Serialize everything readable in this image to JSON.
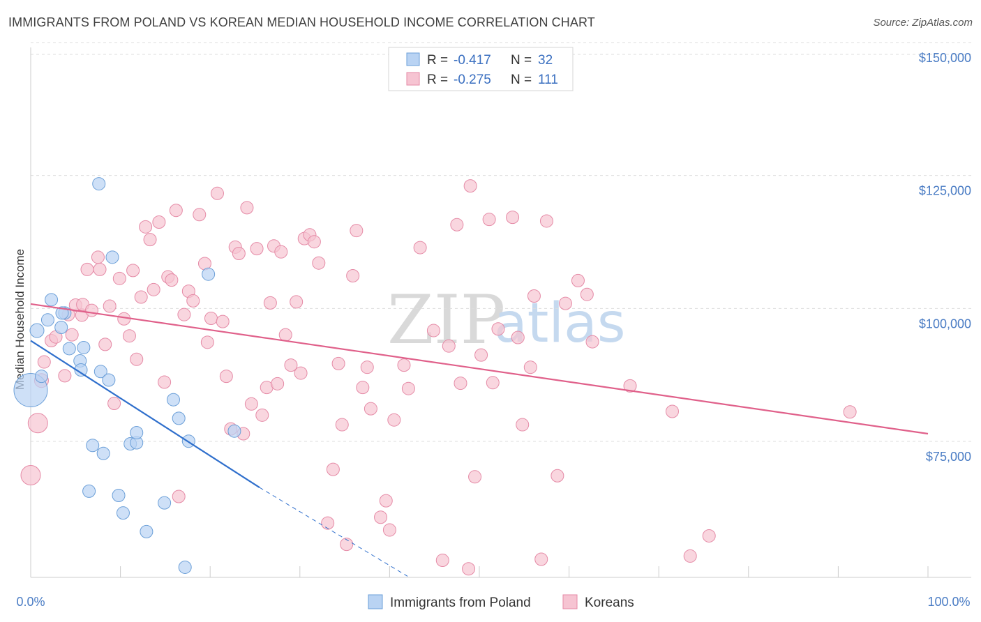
{
  "title": "IMMIGRANTS FROM POLAND VS KOREAN MEDIAN HOUSEHOLD INCOME CORRELATION CHART",
  "source": "Source: ZipAtlas.com",
  "watermark": {
    "zip": "ZIP",
    "atlas": "atlas"
  },
  "colors": {
    "poland_fill": "#b9d3f3",
    "poland_stroke": "#6b9fd8",
    "poland_line": "#2f6fcc",
    "korean_fill": "#f6c4d2",
    "korean_stroke": "#e58aa6",
    "korean_line": "#e0608a",
    "grid": "#dddddd",
    "axis_text": "#4a7cc4"
  },
  "legend": {
    "rows": [
      {
        "r_label": "R =",
        "r_value": "-0.417",
        "n_label": "N =",
        "n_value": "32"
      },
      {
        "r_label": "R =",
        "r_value": "-0.275",
        "n_label": "N =",
        "n_value": "111"
      }
    ]
  },
  "chart_data": {
    "type": "scatter",
    "title": "IMMIGRANTS FROM POLAND VS KOREAN MEDIAN HOUSEHOLD INCOME CORRELATION CHART",
    "xlabel": "",
    "ylabel": "Median Household Income",
    "xlim": [
      0,
      100
    ],
    "ylim": [
      52000,
      155000
    ],
    "x_tick_labels": [
      "0.0%",
      "100.0%"
    ],
    "y_ticks": [
      {
        "value": 75000,
        "label": "$75,000"
      },
      {
        "value": 100000,
        "label": "$100,000"
      },
      {
        "value": 125000,
        "label": "$125,000"
      },
      {
        "value": 150000,
        "label": "$150,000"
      }
    ],
    "grid": true,
    "legend_position": "top-center",
    "series": [
      {
        "name": "Immigrants from Poland",
        "r": -0.417,
        "n": 32,
        "trend": {
          "x": [
            0,
            25.5
          ],
          "y": [
            96300,
            68700
          ],
          "dashed_to": [
            42,
            52000
          ]
        },
        "points": [
          [
            0,
            87000,
            24
          ],
          [
            0.7,
            98200,
            10
          ],
          [
            1.2,
            89600,
            9
          ],
          [
            1.9,
            100200,
            9
          ],
          [
            2.3,
            104000,
            9
          ],
          [
            3.4,
            98800,
            9
          ],
          [
            3.8,
            101500,
            9
          ],
          [
            4.3,
            94800,
            9
          ],
          [
            5.5,
            92500,
            9
          ],
          [
            5.6,
            90800,
            9
          ],
          [
            5.9,
            95000,
            9
          ],
          [
            6.5,
            68000,
            9
          ],
          [
            6.9,
            76600,
            9
          ],
          [
            8.1,
            75100,
            9
          ],
          [
            7.6,
            125800,
            9
          ],
          [
            7.8,
            90500,
            9
          ],
          [
            8.7,
            88900,
            9
          ],
          [
            9.1,
            112000,
            9
          ],
          [
            9.8,
            67200,
            9
          ],
          [
            10.3,
            63900,
            9
          ],
          [
            11.1,
            76900,
            9
          ],
          [
            11.8,
            77100,
            9
          ],
          [
            11.8,
            79000,
            9
          ],
          [
            12.9,
            60400,
            9
          ],
          [
            14.9,
            65800,
            9
          ],
          [
            15.9,
            85200,
            9
          ],
          [
            16.5,
            81700,
            9
          ],
          [
            17.2,
            53700,
            9
          ],
          [
            17.6,
            77400,
            9
          ],
          [
            19.8,
            108800,
            9
          ],
          [
            22.7,
            79300,
            9
          ],
          [
            3.5,
            101500,
            9
          ]
        ]
      },
      {
        "name": "Koreans",
        "r": -0.275,
        "n": 111,
        "trend": {
          "x": [
            0,
            100
          ],
          "y": [
            103200,
            78800
          ]
        },
        "points": [
          [
            0,
            71000,
            14
          ],
          [
            0.8,
            80800,
            14
          ],
          [
            1.2,
            88800,
            10
          ],
          [
            1.5,
            92300,
            9
          ],
          [
            2.3,
            96300,
            9
          ],
          [
            2.8,
            97000,
            9
          ],
          [
            3.8,
            89700,
            9
          ],
          [
            4.2,
            101200,
            9
          ],
          [
            4.6,
            97400,
            9
          ],
          [
            5.0,
            103000,
            9
          ],
          [
            5.7,
            101100,
            9
          ],
          [
            5.8,
            103100,
            9
          ],
          [
            6.3,
            109700,
            9
          ],
          [
            6.8,
            102000,
            9
          ],
          [
            7.5,
            112000,
            9
          ],
          [
            7.7,
            109700,
            9
          ],
          [
            8.3,
            95600,
            9
          ],
          [
            8.8,
            102800,
            9
          ],
          [
            9.3,
            84500,
            9
          ],
          [
            9.9,
            108000,
            9
          ],
          [
            10.4,
            100400,
            9
          ],
          [
            11.0,
            97200,
            9
          ],
          [
            11.4,
            109500,
            9
          ],
          [
            11.8,
            92800,
            9
          ],
          [
            12.3,
            104500,
            9
          ],
          [
            12.8,
            117700,
            9
          ],
          [
            13.3,
            115300,
            9
          ],
          [
            13.7,
            105900,
            9
          ],
          [
            14.3,
            118600,
            9
          ],
          [
            14.9,
            88500,
            9
          ],
          [
            15.3,
            108300,
            9
          ],
          [
            15.7,
            107700,
            9
          ],
          [
            16.2,
            120800,
            9
          ],
          [
            16.5,
            67000,
            9
          ],
          [
            17.1,
            101200,
            9
          ],
          [
            17.6,
            105600,
            9
          ],
          [
            18.1,
            103800,
            9
          ],
          [
            18.8,
            120000,
            9
          ],
          [
            19.4,
            110800,
            9
          ],
          [
            19.7,
            96000,
            9
          ],
          [
            20.1,
            100500,
            9
          ],
          [
            20.8,
            124000,
            9
          ],
          [
            21.4,
            99900,
            9
          ],
          [
            21.8,
            89600,
            9
          ],
          [
            22.3,
            79700,
            9
          ],
          [
            22.8,
            113900,
            9
          ],
          [
            23.2,
            112700,
            9
          ],
          [
            23.7,
            78800,
            9
          ],
          [
            24.1,
            121300,
            9
          ],
          [
            24.6,
            84400,
            9
          ],
          [
            25.2,
            113600,
            9
          ],
          [
            25.8,
            82300,
            9
          ],
          [
            26.3,
            87500,
            9
          ],
          [
            26.7,
            103400,
            9
          ],
          [
            27.1,
            114100,
            9
          ],
          [
            27.5,
            88200,
            9
          ],
          [
            27.9,
            113000,
            9
          ],
          [
            28.4,
            97400,
            9
          ],
          [
            29.0,
            91700,
            9
          ],
          [
            29.6,
            103600,
            9
          ],
          [
            30.1,
            90200,
            9
          ],
          [
            30.5,
            115500,
            9
          ],
          [
            31.1,
            116200,
            9
          ],
          [
            31.6,
            114900,
            9
          ],
          [
            32.1,
            110900,
            9
          ],
          [
            33.1,
            62000,
            9
          ],
          [
            33.7,
            72100,
            9
          ],
          [
            34.3,
            92000,
            9
          ],
          [
            34.7,
            80500,
            9
          ],
          [
            35.2,
            58000,
            9
          ],
          [
            35.9,
            108500,
            9
          ],
          [
            36.3,
            117000,
            9
          ],
          [
            37.0,
            87500,
            9
          ],
          [
            37.5,
            91300,
            9
          ],
          [
            37.9,
            83500,
            9
          ],
          [
            39.0,
            63100,
            9
          ],
          [
            39.6,
            66200,
            9
          ],
          [
            40.0,
            60700,
            9
          ],
          [
            40.5,
            81400,
            9
          ],
          [
            41.6,
            91700,
            9
          ],
          [
            42.1,
            87300,
            9
          ],
          [
            43.4,
            113800,
            9
          ],
          [
            44.9,
            98200,
            9
          ],
          [
            45.9,
            55000,
            9
          ],
          [
            46.6,
            95300,
            9
          ],
          [
            47.5,
            118100,
            9
          ],
          [
            47.9,
            88300,
            9
          ],
          [
            48.8,
            53400,
            9
          ],
          [
            49.0,
            125400,
            9
          ],
          [
            49.5,
            70700,
            9
          ],
          [
            50.2,
            93600,
            9
          ],
          [
            51.1,
            119100,
            9
          ],
          [
            51.5,
            88400,
            9
          ],
          [
            52.1,
            98500,
            9
          ],
          [
            53.7,
            119500,
            9
          ],
          [
            54.3,
            96900,
            9
          ],
          [
            54.8,
            80500,
            9
          ],
          [
            55.7,
            91300,
            9
          ],
          [
            56.1,
            104700,
            9
          ],
          [
            56.9,
            55200,
            9
          ],
          [
            57.5,
            118800,
            9
          ],
          [
            58.7,
            70900,
            9
          ],
          [
            59.6,
            103300,
            9
          ],
          [
            61.0,
            107600,
            9
          ],
          [
            62.0,
            105000,
            9
          ],
          [
            62.6,
            96100,
            9
          ],
          [
            66.8,
            87800,
            9
          ],
          [
            71.5,
            83000,
            9
          ],
          [
            73.5,
            55800,
            9
          ],
          [
            75.6,
            59600,
            9
          ],
          [
            91.3,
            82900,
            9
          ]
        ]
      }
    ]
  },
  "bottom_legend": {
    "items": [
      "Immigrants from Poland",
      "Koreans"
    ]
  }
}
